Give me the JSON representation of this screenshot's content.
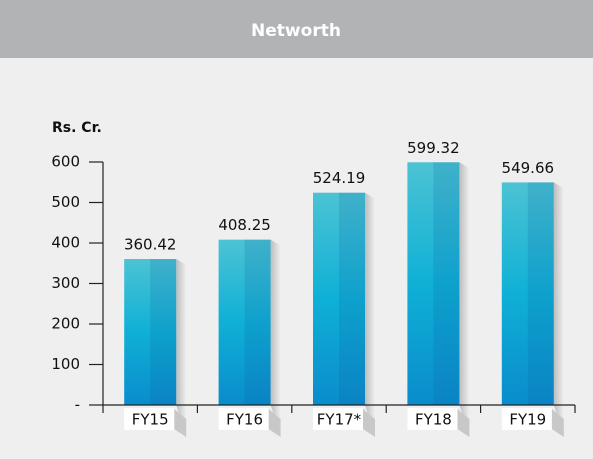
{
  "chart_data": {
    "type": "bar",
    "title": "Networth",
    "ylabel": "Rs. Cr.",
    "categories": [
      "FY15",
      "FY16",
      "FY17*",
      "FY18",
      "FY19"
    ],
    "values": [
      360.42,
      408.25,
      524.19,
      599.32,
      549.66
    ],
    "color": "#14a6d4",
    "ylim": [
      0,
      600
    ],
    "yticks": [
      {
        "value": 0,
        "label": "-"
      },
      100,
      200,
      300,
      400,
      500,
      600
    ],
    "grid": false
  }
}
